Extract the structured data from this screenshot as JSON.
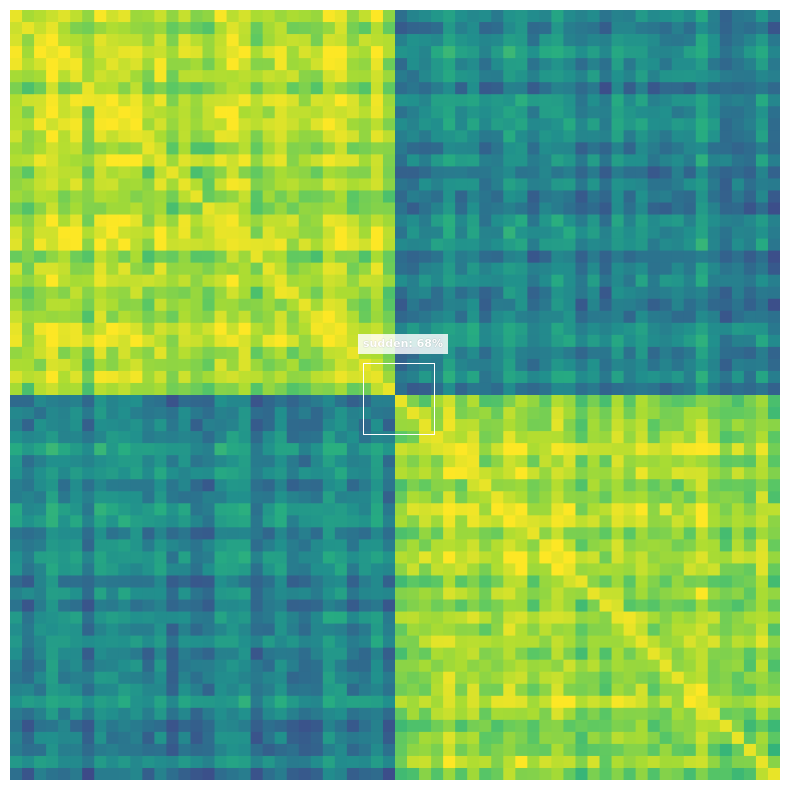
{
  "chart_data": {
    "type": "heatmap",
    "colormap": "viridis",
    "title": "",
    "xlabel": "",
    "ylabel": "",
    "axes_visible": false,
    "grid": false,
    "legend": "none",
    "blocks": [
      {
        "rows": [
          0,
          0.5
        ],
        "cols": [
          0,
          0.5
        ],
        "level": "high"
      },
      {
        "rows": [
          0,
          0.5
        ],
        "cols": [
          0.5,
          1.0
        ],
        "level": "low"
      },
      {
        "rows": [
          0.5,
          1.0
        ],
        "cols": [
          0,
          0.5
        ],
        "level": "low"
      },
      {
        "rows": [
          0.5,
          1.0
        ],
        "cols": [
          0.5,
          1.0
        ],
        "level": "high"
      }
    ],
    "diagonal": "high",
    "annotation": {
      "label": "sudden: 68%",
      "class": "sudden",
      "score_percent": 68,
      "box_color": "#ffffff"
    }
  }
}
